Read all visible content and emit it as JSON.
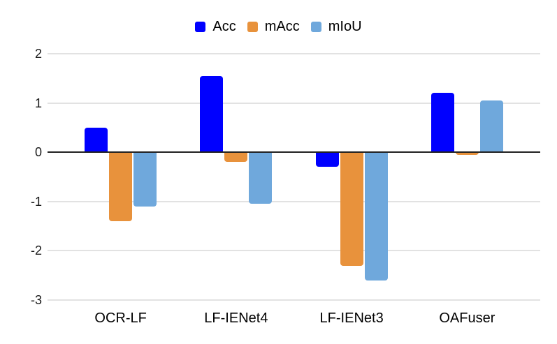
{
  "chart_data": {
    "type": "bar",
    "title": "",
    "xlabel": "",
    "ylabel": "",
    "categories": [
      "OCR-LF",
      "LF-IENet4",
      "LF-IENet3",
      "OAFuser"
    ],
    "series": [
      {
        "name": "Acc",
        "color": "#0000FF",
        "values": [
          0.5,
          1.55,
          -0.3,
          1.2
        ]
      },
      {
        "name": "mAcc",
        "color": "#E8923C",
        "values": [
          -1.4,
          -0.2,
          -2.3,
          -0.05
        ]
      },
      {
        "name": "mIoU",
        "color": "#6FA8DC",
        "values": [
          -1.1,
          -1.05,
          -2.6,
          1.05
        ]
      }
    ],
    "ylim": [
      -3,
      2
    ],
    "yticks": [
      2,
      1,
      0,
      -1,
      -2,
      -3
    ],
    "grid": true,
    "legend_position": "top-center"
  },
  "colors": {
    "background": "#FFFFFF",
    "gridline": "#E2E2E2",
    "axis_line": "#212121",
    "text": "#000000"
  }
}
